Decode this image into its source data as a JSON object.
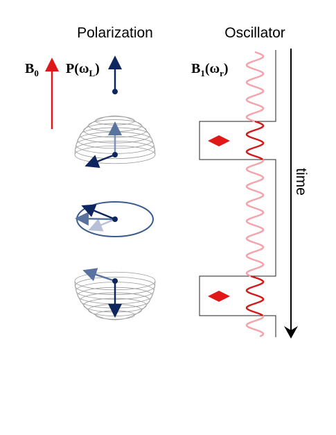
{
  "header": {
    "polarization": "Polarization",
    "oscillator": "Oscillator"
  },
  "labels": {
    "b0": {
      "main": "B",
      "sub": "0"
    },
    "p": {
      "main": "P(ω",
      "sub": "L",
      "end": ")"
    },
    "b1": {
      "main": "B",
      "sub": "1",
      "mid": "(ω",
      "sub2": "r",
      "end": ")"
    },
    "time": "time"
  }
}
